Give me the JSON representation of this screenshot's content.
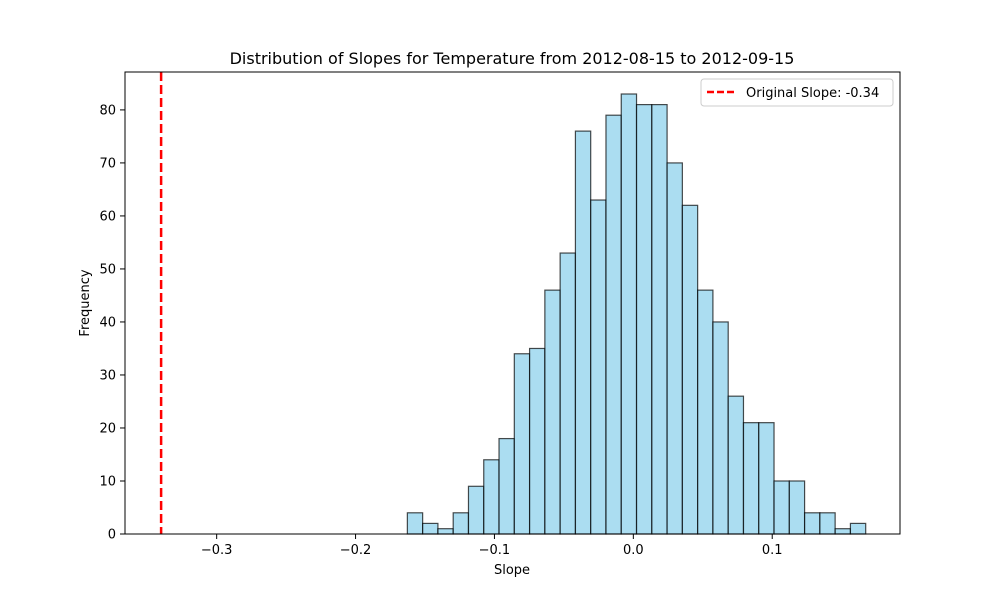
{
  "chart_data": {
    "type": "bar",
    "title": "Distribution of Slopes for Temperature from 2012-08-15 to 2012-09-15",
    "xlabel": "Slope",
    "ylabel": "Frequency",
    "xlim": [
      -0.366,
      0.192
    ],
    "ylim": [
      0,
      87.15
    ],
    "xticks": [
      -0.3,
      -0.2,
      -0.1,
      0.0,
      0.1
    ],
    "xtick_labels": [
      "−0.3",
      "−0.2",
      "−0.1",
      "0.0",
      "0.1"
    ],
    "yticks": [
      0,
      10,
      20,
      30,
      40,
      50,
      60,
      70,
      80
    ],
    "ytick_labels": [
      "0",
      "10",
      "20",
      "30",
      "40",
      "50",
      "60",
      "70",
      "80"
    ],
    "bin_start": -0.1627,
    "bin_width": 0.011,
    "values": [
      4,
      2,
      1,
      4,
      9,
      14,
      18,
      34,
      35,
      46,
      53,
      76,
      63,
      79,
      83,
      81,
      81,
      70,
      62,
      46,
      40,
      26,
      21,
      21,
      10,
      10,
      4,
      4,
      1,
      2
    ],
    "bar_color": "#87CEEB",
    "bar_edge_color": "#000000",
    "reference_line": {
      "x": -0.34,
      "color": "#ff0000",
      "style": "dashed",
      "label": "Original Slope: -0.34"
    },
    "legend": {
      "location": "top-right",
      "entries": [
        "Original Slope: -0.34"
      ]
    },
    "grid": false
  }
}
